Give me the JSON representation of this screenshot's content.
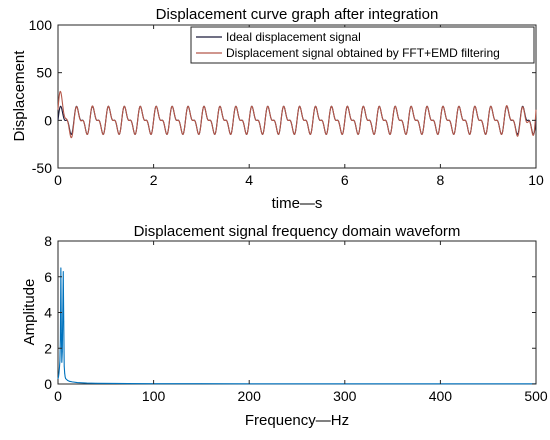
{
  "chart_data": [
    {
      "type": "line",
      "title": "Displacement curve graph after integration",
      "xlabel": "time—s",
      "ylabel": "Displacement",
      "xlim": [
        0,
        10
      ],
      "ylim": [
        -50,
        100
      ],
      "xticks": [
        0,
        2,
        4,
        6,
        8,
        10
      ],
      "yticks": [
        -50,
        0,
        50,
        100
      ],
      "grid": false,
      "legend_position": "top-right",
      "signal_model": {
        "components": [
          {
            "frequency_hz": 3.0,
            "amplitude": 11
          },
          {
            "frequency_hz": 6.0,
            "amplitude": 6
          }
        ],
        "duration_s": 10
      },
      "series": [
        {
          "name": "Ideal displacement signal",
          "color": "#1a1a3a",
          "edge_distortion": 0
        },
        {
          "name": "Displacement signal obtained by FFT+EMD filtering",
          "color": "#b5584a",
          "edge_distortion": 12
        }
      ]
    },
    {
      "type": "line",
      "title": "Displacement signal frequency domain waveform",
      "xlabel": "Frequency—Hz",
      "ylabel": "Amplitude",
      "xlim": [
        0,
        500
      ],
      "ylim": [
        0,
        8
      ],
      "xticks": [
        0,
        100,
        200,
        300,
        400,
        500
      ],
      "yticks": [
        0,
        2,
        4,
        6,
        8
      ],
      "grid": false,
      "series": [
        {
          "color": "#0072bd",
          "x": [
            0,
            0.5,
            1,
            1.5,
            2,
            2.5,
            3,
            3.5,
            4,
            4.5,
            5,
            5.5,
            6,
            6.5,
            7,
            7.5,
            8,
            9,
            10,
            12,
            15,
            20,
            30,
            40,
            60,
            100,
            150,
            200,
            300,
            400,
            500
          ],
          "y": [
            0.3,
            0.4,
            0.6,
            0.9,
            1.3,
            2.5,
            6.5,
            3.0,
            1.2,
            1.8,
            4.0,
            6.3,
            3.5,
            1.0,
            0.6,
            0.4,
            0.3,
            0.25,
            0.2,
            0.15,
            0.12,
            0.08,
            0.05,
            0.04,
            0.03,
            0.02,
            0.015,
            0.01,
            0.01,
            0.01,
            0.01
          ]
        }
      ]
    }
  ]
}
